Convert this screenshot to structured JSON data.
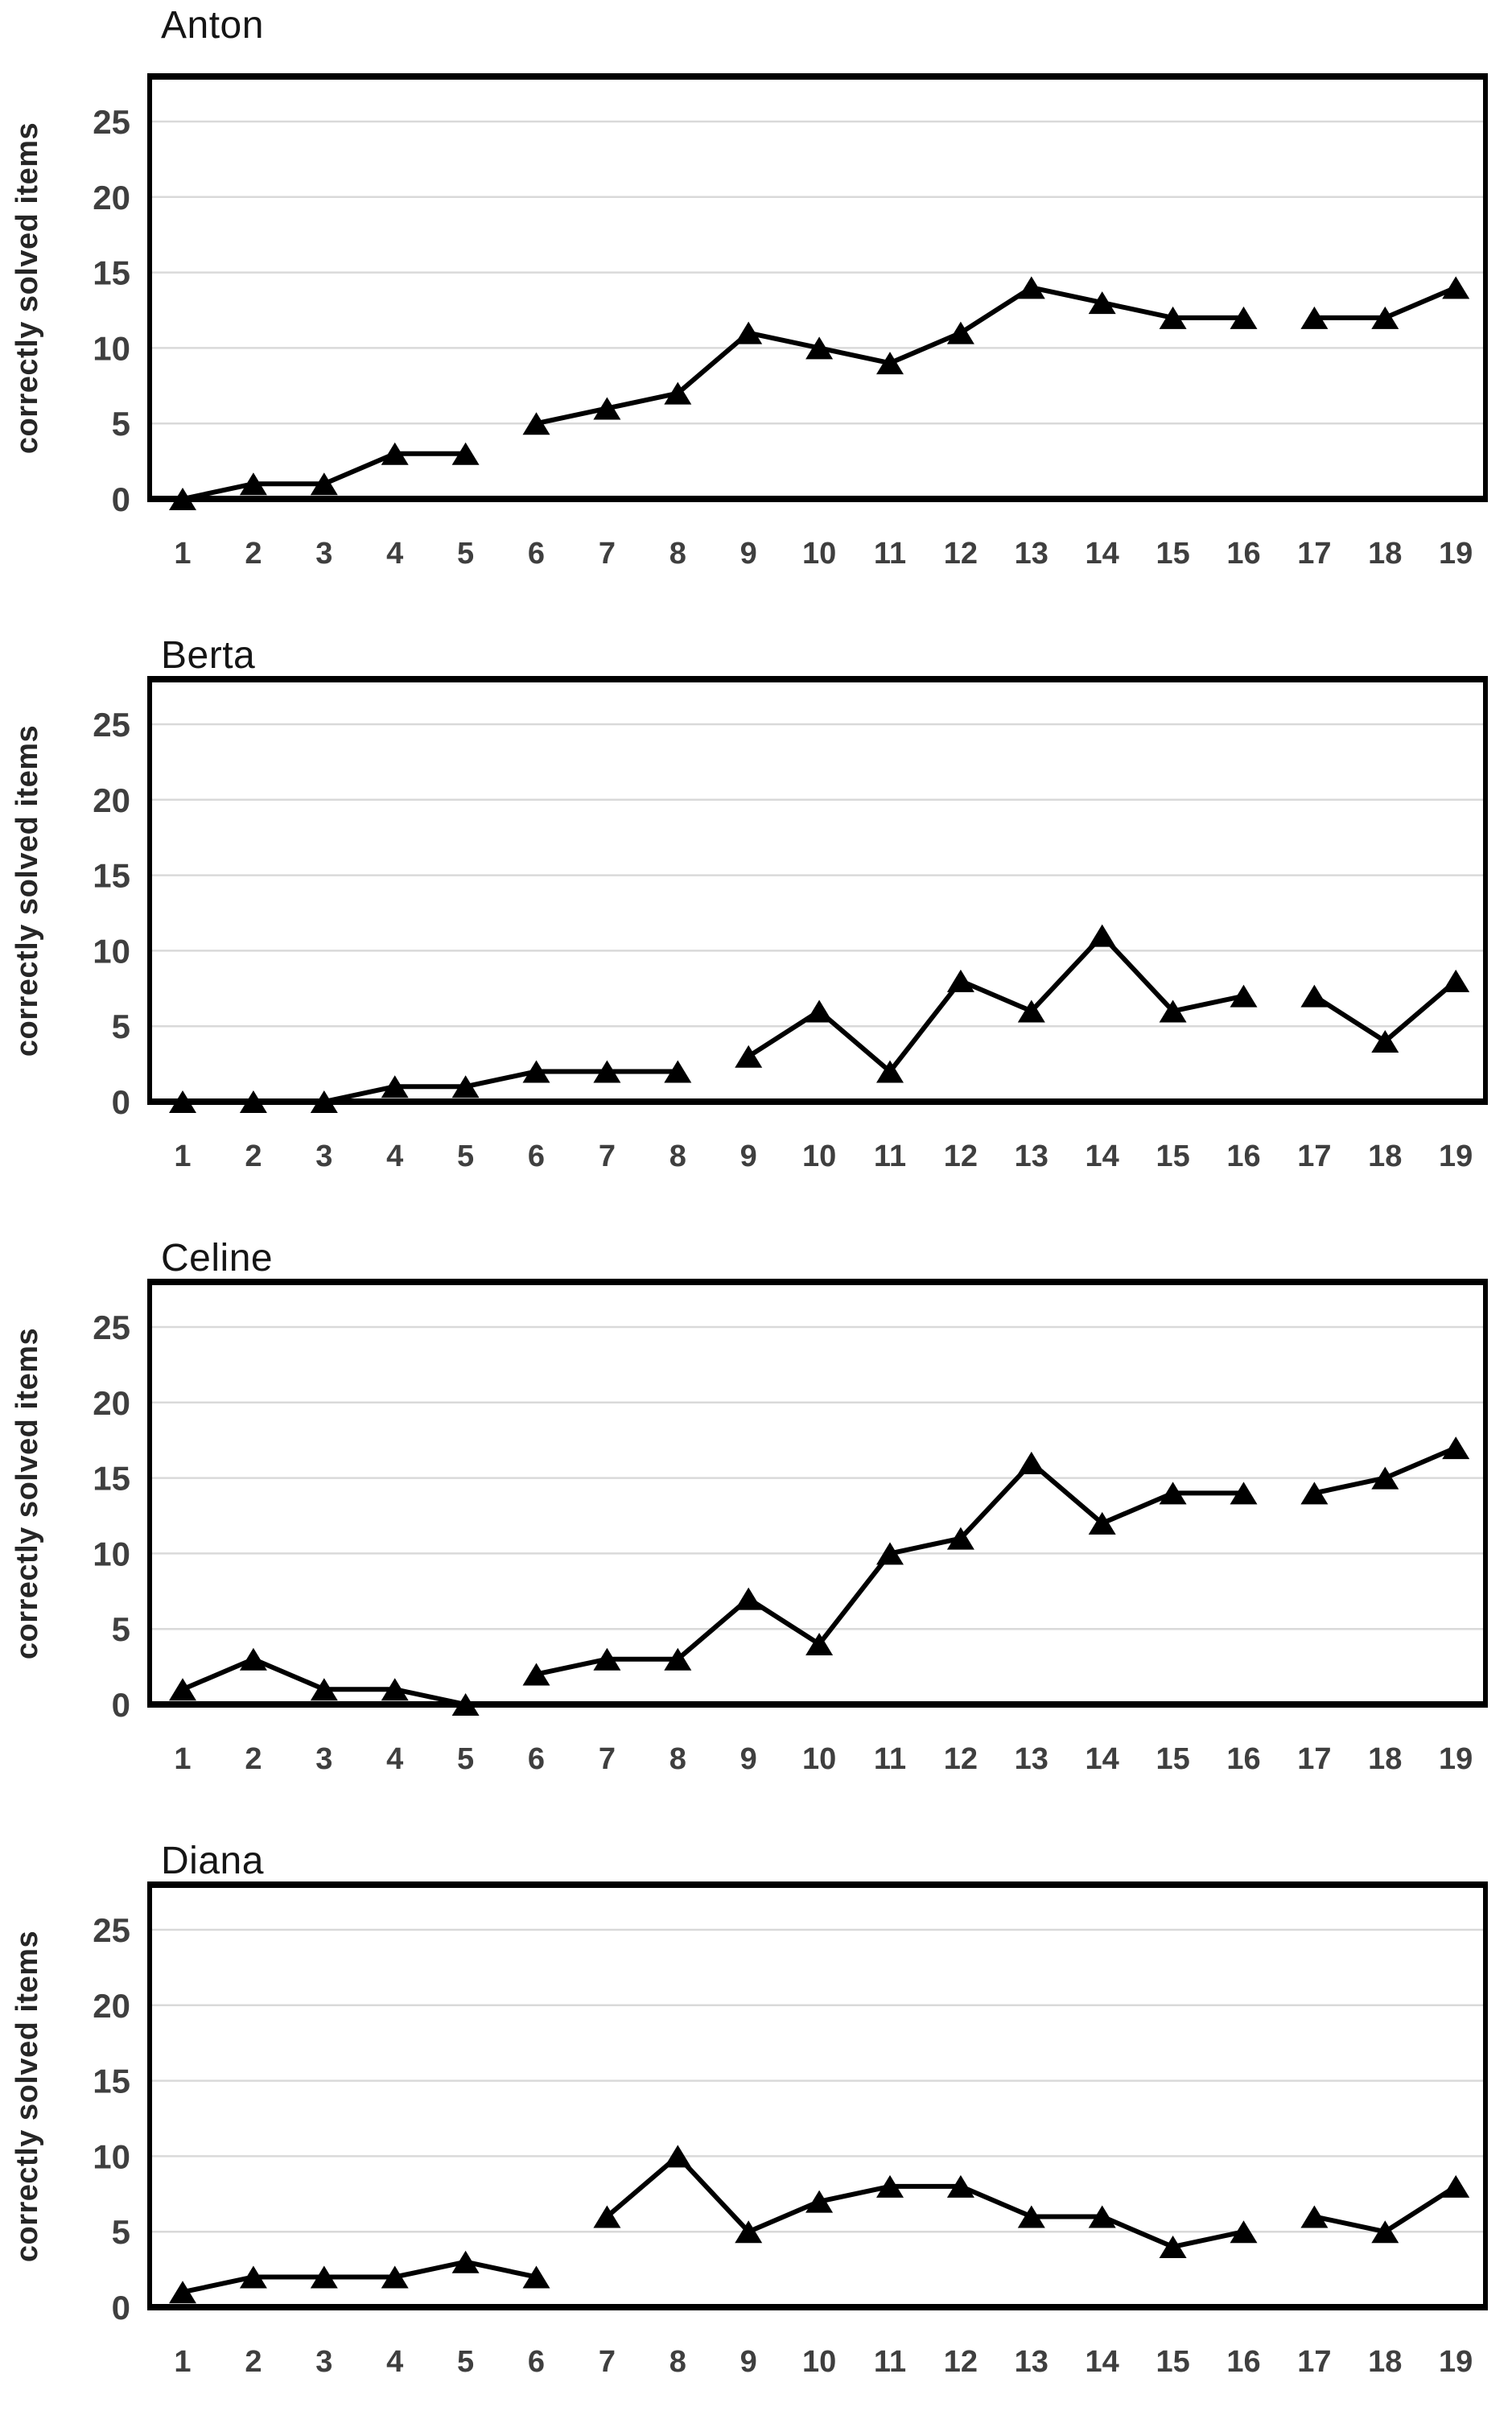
{
  "colors": {
    "background": "#ffffff",
    "axis": "#000000",
    "gridline": "#d9d9d9",
    "series": "#000000",
    "tick_label": "#3f3f3f",
    "title": "#151515"
  },
  "chart_data": [
    {
      "type": "line",
      "title": "Anton",
      "ylabel": "correctly solved items",
      "marker": "triangle",
      "grid": true,
      "ylim": [
        0,
        28
      ],
      "y_ticks": [
        0,
        5,
        10,
        15,
        20,
        25
      ],
      "x_labels": [
        "1",
        "2",
        "3",
        "4",
        "5",
        "6",
        "7",
        "8",
        "9",
        "10",
        "11",
        "12",
        "13",
        "14",
        "15",
        "16",
        "17",
        "18",
        "19"
      ],
      "segments": [
        {
          "points": [
            [
              1,
              0
            ],
            [
              2,
              1
            ],
            [
              3,
              1
            ],
            [
              4,
              3
            ],
            [
              5,
              3
            ]
          ]
        },
        {
          "points": [
            [
              6,
              5
            ],
            [
              7,
              6
            ],
            [
              8,
              7
            ],
            [
              9,
              11
            ],
            [
              10,
              10
            ],
            [
              11,
              9
            ],
            [
              12,
              11
            ],
            [
              13,
              14
            ],
            [
              14,
              13
            ],
            [
              15,
              12
            ],
            [
              16,
              12
            ]
          ]
        },
        {
          "points": [
            [
              17,
              12
            ],
            [
              18,
              12
            ],
            [
              19,
              14
            ]
          ]
        }
      ]
    },
    {
      "type": "line",
      "title": "Berta",
      "ylabel": "correctly solved items",
      "marker": "triangle",
      "grid": true,
      "ylim": [
        0,
        28
      ],
      "y_ticks": [
        0,
        5,
        10,
        15,
        20,
        25
      ],
      "x_labels": [
        "1",
        "2",
        "3",
        "4",
        "5",
        "6",
        "7",
        "8",
        "9",
        "10",
        "11",
        "12",
        "13",
        "14",
        "15",
        "16",
        "17",
        "18",
        "19"
      ],
      "segments": [
        {
          "points": [
            [
              1,
              0
            ],
            [
              2,
              0
            ],
            [
              3,
              0
            ],
            [
              4,
              1
            ],
            [
              5,
              1
            ],
            [
              6,
              2
            ],
            [
              7,
              2
            ],
            [
              8,
              2
            ]
          ]
        },
        {
          "points": [
            [
              9,
              3
            ],
            [
              10,
              6
            ],
            [
              11,
              2
            ],
            [
              12,
              8
            ],
            [
              13,
              6
            ],
            [
              14,
              11
            ],
            [
              15,
              6
            ],
            [
              16,
              7
            ]
          ]
        },
        {
          "points": [
            [
              17,
              7
            ],
            [
              18,
              4
            ],
            [
              19,
              8
            ]
          ]
        }
      ]
    },
    {
      "type": "line",
      "title": "Celine",
      "ylabel": "correctly solved items",
      "marker": "triangle",
      "grid": true,
      "ylim": [
        0,
        28
      ],
      "y_ticks": [
        0,
        5,
        10,
        15,
        20,
        25
      ],
      "x_labels": [
        "1",
        "2",
        "3",
        "4",
        "5",
        "6",
        "7",
        "8",
        "9",
        "10",
        "11",
        "12",
        "13",
        "14",
        "15",
        "16",
        "17",
        "18",
        "19"
      ],
      "segments": [
        {
          "points": [
            [
              1,
              1
            ],
            [
              2,
              3
            ],
            [
              3,
              1
            ],
            [
              4,
              1
            ],
            [
              5,
              0
            ]
          ]
        },
        {
          "points": [
            [
              6,
              2
            ],
            [
              7,
              3
            ],
            [
              8,
              3
            ],
            [
              9,
              7
            ],
            [
              10,
              4
            ],
            [
              11,
              10
            ],
            [
              12,
              11
            ],
            [
              13,
              16
            ],
            [
              14,
              12
            ],
            [
              15,
              14
            ],
            [
              16,
              14
            ]
          ]
        },
        {
          "points": [
            [
              17,
              14
            ],
            [
              18,
              15
            ],
            [
              19,
              17
            ]
          ]
        }
      ]
    },
    {
      "type": "line",
      "title": "Diana",
      "ylabel": "correctly solved items",
      "marker": "triangle",
      "grid": true,
      "ylim": [
        0,
        28
      ],
      "y_ticks": [
        0,
        5,
        10,
        15,
        20,
        25
      ],
      "x_labels": [
        "1",
        "2",
        "3",
        "4",
        "5",
        "6",
        "7",
        "8",
        "9",
        "10",
        "11",
        "12",
        "13",
        "14",
        "15",
        "16",
        "17",
        "18",
        "19"
      ],
      "segments": [
        {
          "points": [
            [
              1,
              1
            ],
            [
              2,
              2
            ],
            [
              3,
              2
            ],
            [
              4,
              2
            ],
            [
              5,
              3
            ],
            [
              6,
              2
            ]
          ]
        },
        {
          "points": [
            [
              7,
              6
            ],
            [
              8,
              10
            ],
            [
              9,
              5
            ],
            [
              10,
              7
            ],
            [
              11,
              8
            ],
            [
              12,
              8
            ],
            [
              13,
              6
            ],
            [
              14,
              6
            ],
            [
              15,
              4
            ],
            [
              16,
              5
            ]
          ]
        },
        {
          "points": [
            [
              17,
              6
            ],
            [
              18,
              5
            ],
            [
              19,
              8
            ]
          ]
        }
      ]
    }
  ]
}
